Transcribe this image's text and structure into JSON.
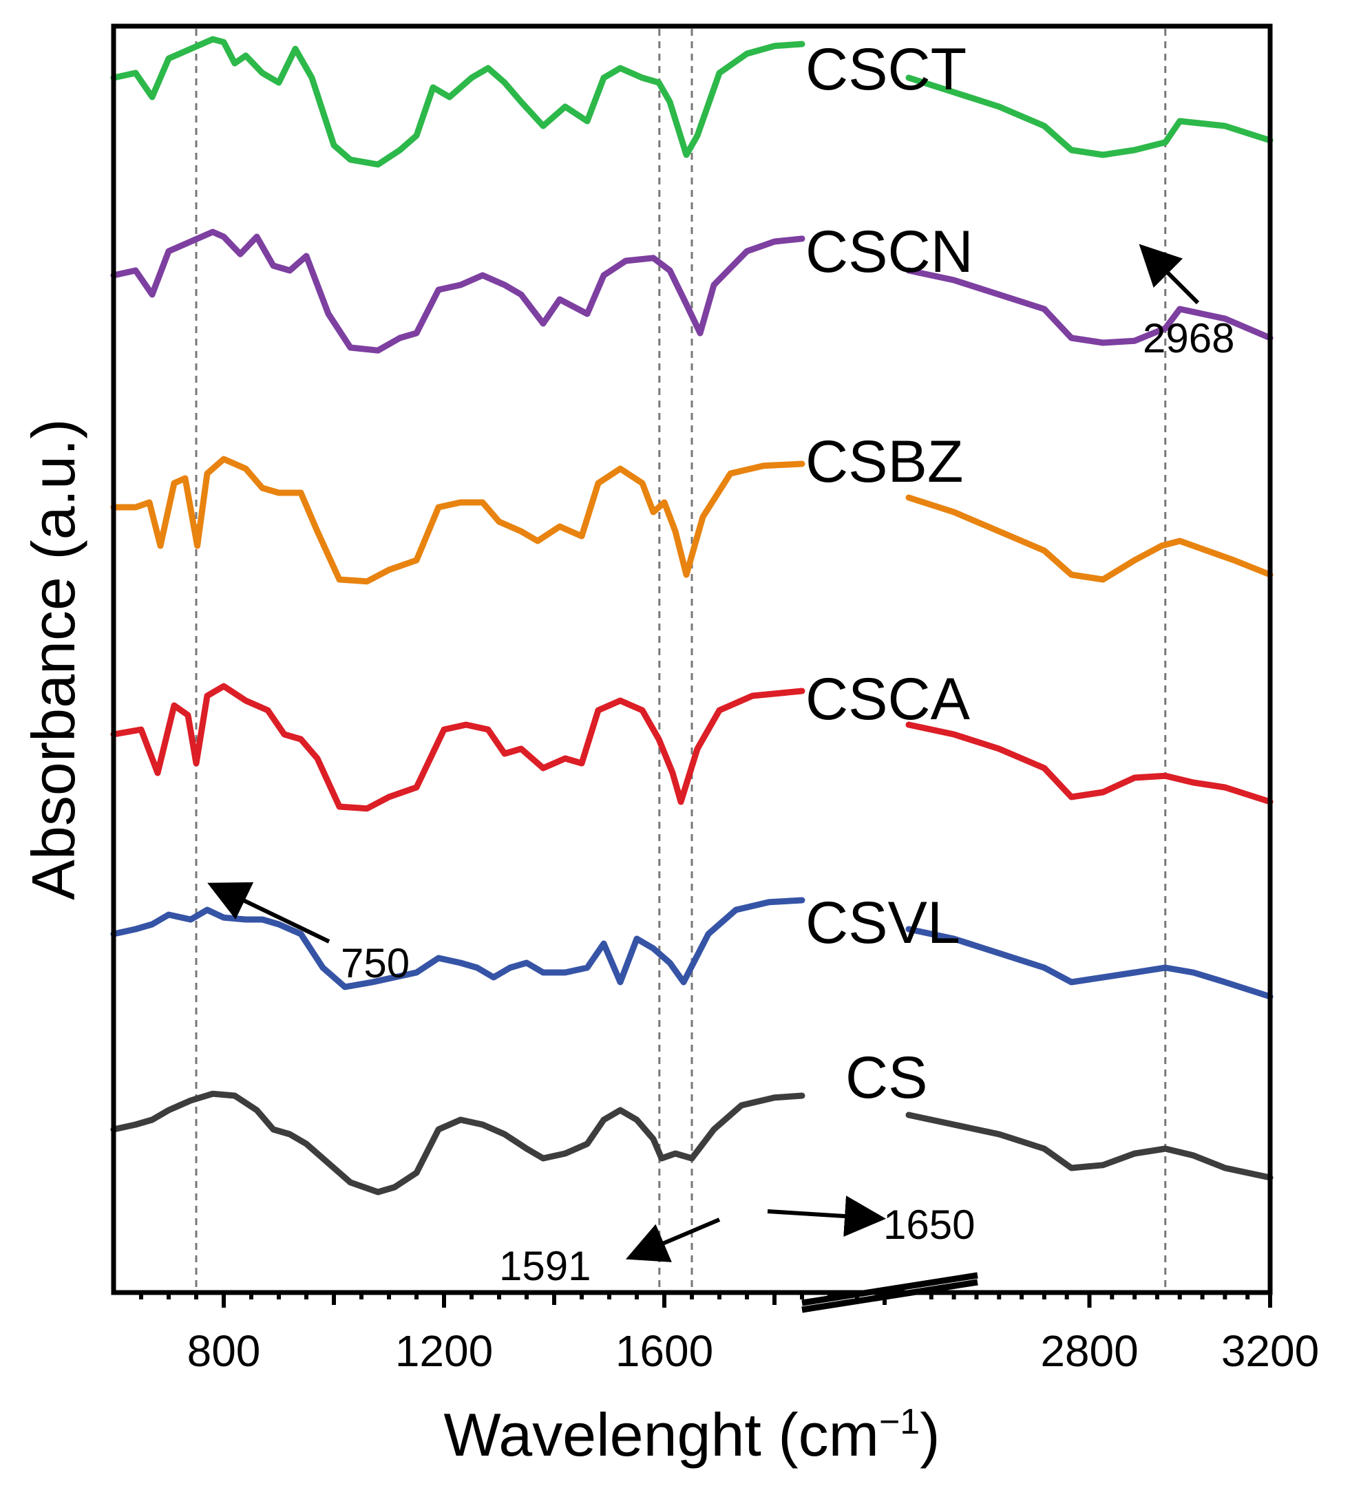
{
  "chart_data": {
    "type": "line",
    "title": "",
    "xlabel": "Wavelenght (cm",
    "xlabel_sup": "−1",
    "xlabel_close": ")",
    "ylabel": "Absorbance (a.u.)",
    "x_break": {
      "left_range": [
        600,
        2000
      ],
      "right_range": [
        2400,
        3200
      ]
    },
    "x_ticks": [
      800,
      1200,
      1600,
      2800,
      3200
    ],
    "reference_lines": [
      750,
      1591,
      1650,
      2968
    ],
    "series": [
      {
        "name": "CSCT",
        "color": "#2db84a",
        "offset": 5,
        "points": [
          [
            600,
            0.55
          ],
          [
            640,
            0.6
          ],
          [
            670,
            0.35
          ],
          [
            700,
            0.75
          ],
          [
            740,
            0.85
          ],
          [
            780,
            0.95
          ],
          [
            800,
            0.92
          ],
          [
            820,
            0.7
          ],
          [
            840,
            0.78
          ],
          [
            870,
            0.6
          ],
          [
            900,
            0.5
          ],
          [
            930,
            0.85
          ],
          [
            960,
            0.55
          ],
          [
            1000,
            -0.15
          ],
          [
            1030,
            -0.3
          ],
          [
            1080,
            -0.35
          ],
          [
            1120,
            -0.2
          ],
          [
            1150,
            -0.05
          ],
          [
            1180,
            0.45
          ],
          [
            1210,
            0.35
          ],
          [
            1250,
            0.55
          ],
          [
            1280,
            0.65
          ],
          [
            1310,
            0.5
          ],
          [
            1340,
            0.3
          ],
          [
            1380,
            0.05
          ],
          [
            1420,
            0.25
          ],
          [
            1460,
            0.1
          ],
          [
            1490,
            0.55
          ],
          [
            1520,
            0.65
          ],
          [
            1560,
            0.55
          ],
          [
            1590,
            0.5
          ],
          [
            1610,
            0.3
          ],
          [
            1640,
            -0.25
          ],
          [
            1660,
            -0.05
          ],
          [
            1700,
            0.6
          ],
          [
            1750,
            0.8
          ],
          [
            1800,
            0.88
          ],
          [
            1850,
            0.9
          ]
        ],
        "points_right": [
          [
            2400,
            0.55
          ],
          [
            2500,
            0.4
          ],
          [
            2600,
            0.25
          ],
          [
            2700,
            0.05
          ],
          [
            2760,
            -0.2
          ],
          [
            2830,
            -0.25
          ],
          [
            2900,
            -0.2
          ],
          [
            2968,
            -0.12
          ],
          [
            3000,
            0.1
          ],
          [
            3100,
            0.05
          ],
          [
            3200,
            -0.1
          ]
        ]
      },
      {
        "name": "CSCN",
        "color": "#7d3fa0",
        "offset": 4,
        "points": [
          [
            600,
            0.5
          ],
          [
            640,
            0.55
          ],
          [
            670,
            0.3
          ],
          [
            700,
            0.75
          ],
          [
            740,
            0.85
          ],
          [
            780,
            0.95
          ],
          [
            800,
            0.9
          ],
          [
            830,
            0.72
          ],
          [
            860,
            0.9
          ],
          [
            890,
            0.6
          ],
          [
            920,
            0.55
          ],
          [
            950,
            0.7
          ],
          [
            990,
            0.1
          ],
          [
            1030,
            -0.25
          ],
          [
            1080,
            -0.28
          ],
          [
            1120,
            -0.15
          ],
          [
            1150,
            -0.1
          ],
          [
            1190,
            0.35
          ],
          [
            1230,
            0.4
          ],
          [
            1270,
            0.5
          ],
          [
            1310,
            0.4
          ],
          [
            1340,
            0.3
          ],
          [
            1380,
            0.0
          ],
          [
            1410,
            0.25
          ],
          [
            1460,
            0.1
          ],
          [
            1490,
            0.5
          ],
          [
            1530,
            0.65
          ],
          [
            1580,
            0.68
          ],
          [
            1610,
            0.55
          ],
          [
            1640,
            0.2
          ],
          [
            1665,
            -0.1
          ],
          [
            1690,
            0.4
          ],
          [
            1750,
            0.75
          ],
          [
            1800,
            0.85
          ],
          [
            1850,
            0.88
          ]
        ],
        "points_right": [
          [
            2400,
            0.55
          ],
          [
            2500,
            0.45
          ],
          [
            2600,
            0.3
          ],
          [
            2700,
            0.15
          ],
          [
            2760,
            -0.15
          ],
          [
            2830,
            -0.2
          ],
          [
            2900,
            -0.18
          ],
          [
            2968,
            -0.05
          ],
          [
            3000,
            0.15
          ],
          [
            3100,
            0.05
          ],
          [
            3200,
            -0.15
          ]
        ]
      },
      {
        "name": "CSBZ",
        "color": "#e88310",
        "offset": 3,
        "points": [
          [
            600,
            0.45
          ],
          [
            640,
            0.45
          ],
          [
            665,
            0.5
          ],
          [
            685,
            0.05
          ],
          [
            710,
            0.7
          ],
          [
            730,
            0.75
          ],
          [
            752,
            0.05
          ],
          [
            770,
            0.8
          ],
          [
            800,
            0.95
          ],
          [
            840,
            0.85
          ],
          [
            870,
            0.65
          ],
          [
            900,
            0.6
          ],
          [
            940,
            0.6
          ],
          [
            970,
            0.2
          ],
          [
            1010,
            -0.3
          ],
          [
            1060,
            -0.32
          ],
          [
            1100,
            -0.2
          ],
          [
            1150,
            -0.1
          ],
          [
            1190,
            0.45
          ],
          [
            1230,
            0.5
          ],
          [
            1270,
            0.5
          ],
          [
            1300,
            0.3
          ],
          [
            1340,
            0.2
          ],
          [
            1370,
            0.1
          ],
          [
            1410,
            0.25
          ],
          [
            1450,
            0.15
          ],
          [
            1480,
            0.7
          ],
          [
            1520,
            0.85
          ],
          [
            1560,
            0.7
          ],
          [
            1580,
            0.4
          ],
          [
            1600,
            0.5
          ],
          [
            1620,
            0.2
          ],
          [
            1640,
            -0.25
          ],
          [
            1670,
            0.35
          ],
          [
            1720,
            0.8
          ],
          [
            1780,
            0.88
          ],
          [
            1850,
            0.9
          ]
        ],
        "points_right": [
          [
            2400,
            0.55
          ],
          [
            2500,
            0.4
          ],
          [
            2600,
            0.2
          ],
          [
            2700,
            0.0
          ],
          [
            2760,
            -0.25
          ],
          [
            2830,
            -0.3
          ],
          [
            2900,
            -0.1
          ],
          [
            2960,
            0.05
          ],
          [
            3000,
            0.1
          ],
          [
            3060,
            0.0
          ],
          [
            3120,
            -0.1
          ],
          [
            3200,
            -0.25
          ]
        ]
      },
      {
        "name": "CSCA",
        "color": "#dc1e26",
        "offset": 2,
        "points": [
          [
            600,
            0.45
          ],
          [
            650,
            0.5
          ],
          [
            680,
            0.05
          ],
          [
            710,
            0.75
          ],
          [
            735,
            0.65
          ],
          [
            750,
            0.15
          ],
          [
            770,
            0.85
          ],
          [
            800,
            0.95
          ],
          [
            840,
            0.8
          ],
          [
            880,
            0.7
          ],
          [
            910,
            0.45
          ],
          [
            940,
            0.4
          ],
          [
            970,
            0.2
          ],
          [
            1010,
            -0.3
          ],
          [
            1060,
            -0.32
          ],
          [
            1100,
            -0.2
          ],
          [
            1150,
            -0.1
          ],
          [
            1200,
            0.5
          ],
          [
            1240,
            0.55
          ],
          [
            1280,
            0.5
          ],
          [
            1310,
            0.25
          ],
          [
            1340,
            0.3
          ],
          [
            1380,
            0.1
          ],
          [
            1420,
            0.2
          ],
          [
            1450,
            0.15
          ],
          [
            1480,
            0.7
          ],
          [
            1520,
            0.8
          ],
          [
            1560,
            0.7
          ],
          [
            1590,
            0.4
          ],
          [
            1615,
            0.05
          ],
          [
            1630,
            -0.25
          ],
          [
            1660,
            0.3
          ],
          [
            1700,
            0.7
          ],
          [
            1760,
            0.85
          ],
          [
            1850,
            0.9
          ]
        ],
        "points_right": [
          [
            2400,
            0.55
          ],
          [
            2500,
            0.45
          ],
          [
            2600,
            0.3
          ],
          [
            2700,
            0.1
          ],
          [
            2760,
            -0.2
          ],
          [
            2830,
            -0.15
          ],
          [
            2900,
            0.0
          ],
          [
            2968,
            0.02
          ],
          [
            3030,
            -0.05
          ],
          [
            3100,
            -0.1
          ],
          [
            3200,
            -0.25
          ]
        ]
      },
      {
        "name": "CSVL",
        "color": "#3654a6",
        "offset": 1,
        "points": [
          [
            600,
            0.45
          ],
          [
            640,
            0.5
          ],
          [
            670,
            0.55
          ],
          [
            700,
            0.65
          ],
          [
            740,
            0.6
          ],
          [
            770,
            0.7
          ],
          [
            800,
            0.62
          ],
          [
            840,
            0.6
          ],
          [
            870,
            0.6
          ],
          [
            900,
            0.55
          ],
          [
            940,
            0.45
          ],
          [
            980,
            0.1
          ],
          [
            1020,
            -0.1
          ],
          [
            1070,
            -0.05
          ],
          [
            1110,
            0.0
          ],
          [
            1150,
            0.05
          ],
          [
            1190,
            0.2
          ],
          [
            1230,
            0.15
          ],
          [
            1260,
            0.1
          ],
          [
            1290,
            0.0
          ],
          [
            1320,
            0.1
          ],
          [
            1350,
            0.15
          ],
          [
            1380,
            0.05
          ],
          [
            1420,
            0.05
          ],
          [
            1460,
            0.1
          ],
          [
            1490,
            0.35
          ],
          [
            1520,
            -0.05
          ],
          [
            1550,
            0.4
          ],
          [
            1580,
            0.3
          ],
          [
            1610,
            0.15
          ],
          [
            1635,
            -0.05
          ],
          [
            1680,
            0.45
          ],
          [
            1730,
            0.7
          ],
          [
            1790,
            0.78
          ],
          [
            1850,
            0.8
          ]
        ],
        "points_right": [
          [
            2400,
            0.5
          ],
          [
            2500,
            0.4
          ],
          [
            2600,
            0.25
          ],
          [
            2700,
            0.1
          ],
          [
            2760,
            -0.05
          ],
          [
            2830,
            0.0
          ],
          [
            2900,
            0.05
          ],
          [
            2968,
            0.1
          ],
          [
            3030,
            0.05
          ],
          [
            3100,
            -0.05
          ],
          [
            3200,
            -0.2
          ]
        ]
      },
      {
        "name": "CS",
        "color": "#3d3d3d",
        "offset": 0,
        "points": [
          [
            600,
            0.35
          ],
          [
            640,
            0.4
          ],
          [
            670,
            0.45
          ],
          [
            700,
            0.55
          ],
          [
            740,
            0.65
          ],
          [
            780,
            0.72
          ],
          [
            820,
            0.7
          ],
          [
            860,
            0.55
          ],
          [
            890,
            0.35
          ],
          [
            920,
            0.3
          ],
          [
            950,
            0.2
          ],
          [
            990,
            0.0
          ],
          [
            1030,
            -0.2
          ],
          [
            1080,
            -0.3
          ],
          [
            1110,
            -0.25
          ],
          [
            1150,
            -0.1
          ],
          [
            1190,
            0.35
          ],
          [
            1230,
            0.45
          ],
          [
            1270,
            0.4
          ],
          [
            1310,
            0.3
          ],
          [
            1350,
            0.15
          ],
          [
            1380,
            0.05
          ],
          [
            1420,
            0.1
          ],
          [
            1460,
            0.2
          ],
          [
            1490,
            0.45
          ],
          [
            1520,
            0.55
          ],
          [
            1550,
            0.45
          ],
          [
            1580,
            0.25
          ],
          [
            1595,
            0.05
          ],
          [
            1620,
            0.1
          ],
          [
            1650,
            0.05
          ],
          [
            1690,
            0.35
          ],
          [
            1740,
            0.6
          ],
          [
            1800,
            0.68
          ],
          [
            1850,
            0.7
          ]
        ],
        "points_right": [
          [
            2400,
            0.5
          ],
          [
            2500,
            0.4
          ],
          [
            2600,
            0.3
          ],
          [
            2700,
            0.15
          ],
          [
            2760,
            -0.05
          ],
          [
            2830,
            -0.02
          ],
          [
            2900,
            0.1
          ],
          [
            2968,
            0.15
          ],
          [
            3030,
            0.08
          ],
          [
            3100,
            -0.05
          ],
          [
            3200,
            -0.15
          ]
        ]
      }
    ],
    "annotations": [
      {
        "text": "2968"
      },
      {
        "text": "750"
      },
      {
        "text": "1591"
      },
      {
        "text": "1650"
      }
    ]
  }
}
